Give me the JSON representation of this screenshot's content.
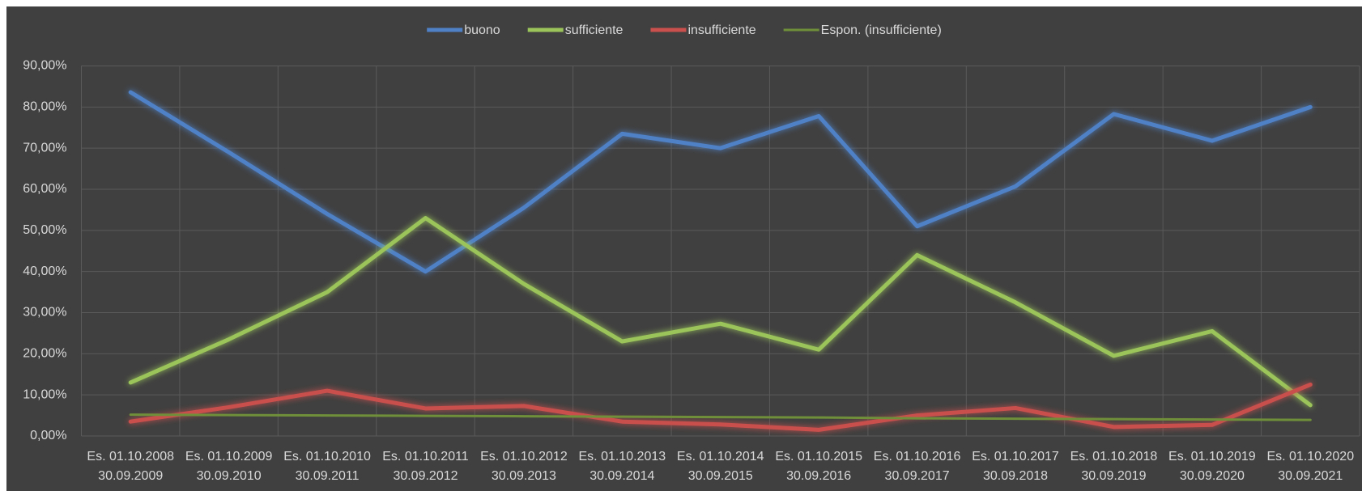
{
  "chart_data": {
    "type": "line",
    "categories": [
      [
        "Es. 01.10.2008",
        "30.09.2009"
      ],
      [
        "Es. 01.10.2009",
        "30.09.2010"
      ],
      [
        "Es. 01.10.2010",
        "30.09.2011"
      ],
      [
        "Es. 01.10.2011",
        "30.09.2012"
      ],
      [
        "Es. 01.10.2012",
        "30.09.2013"
      ],
      [
        "Es. 01.10.2013",
        "30.09.2014"
      ],
      [
        "Es. 01.10.2014",
        "30.09.2015"
      ],
      [
        "Es. 01.10.2015",
        "30.09.2016"
      ],
      [
        "Es. 01.10.2016",
        "30.09.2017"
      ],
      [
        "Es. 01.10.2017",
        "30.09.2018"
      ],
      [
        "Es. 01.10.2018",
        "30.09.2019"
      ],
      [
        "Es. 01.10.2019",
        "30.09.2020"
      ],
      [
        "Es. 01.10.2020",
        "30.09.2021"
      ]
    ],
    "series": [
      {
        "name": "buono",
        "color": "#4f81c7",
        "width": 5,
        "glow": true,
        "values": [
          83.6,
          69,
          54,
          40,
          55.5,
          73.5,
          70,
          77.8,
          51,
          60.7,
          78.3,
          71.8,
          80
        ]
      },
      {
        "name": "sufficiente",
        "color": "#9bc55a",
        "width": 5,
        "glow": true,
        "values": [
          13,
          23.5,
          35,
          53,
          37,
          23,
          27.3,
          21,
          44,
          32.5,
          19.5,
          25.5,
          7.5
        ]
      },
      {
        "name": "insufficiente",
        "color": "#c9504d",
        "width": 5,
        "glow": true,
        "values": [
          3.5,
          7,
          11,
          6.7,
          7.3,
          3.5,
          2.8,
          1.5,
          5,
          6.8,
          2.2,
          2.7,
          12.5
        ]
      },
      {
        "name": "Espon. (insufficiente)",
        "color": "#6f8f3a",
        "width": 3,
        "glow": false,
        "values": [
          5.2,
          5.1,
          5.0,
          4.9,
          4.8,
          4.7,
          4.6,
          4.5,
          4.3,
          4.2,
          4.1,
          4.0,
          3.9
        ]
      }
    ],
    "ylim": [
      0,
      90
    ],
    "yticks": [
      {
        "value": 0,
        "label": "0,00%"
      },
      {
        "value": 10,
        "label": "10,00%"
      },
      {
        "value": 20,
        "label": "20,00%"
      },
      {
        "value": 30,
        "label": "30,00%"
      },
      {
        "value": 40,
        "label": "40,00%"
      },
      {
        "value": 50,
        "label": "50,00%"
      },
      {
        "value": 60,
        "label": "60,00%"
      },
      {
        "value": 70,
        "label": "70,00%"
      },
      {
        "value": 80,
        "label": "80,00%"
      },
      {
        "value": 90,
        "label": "90,00%"
      }
    ],
    "grid": true,
    "legend": "top"
  }
}
